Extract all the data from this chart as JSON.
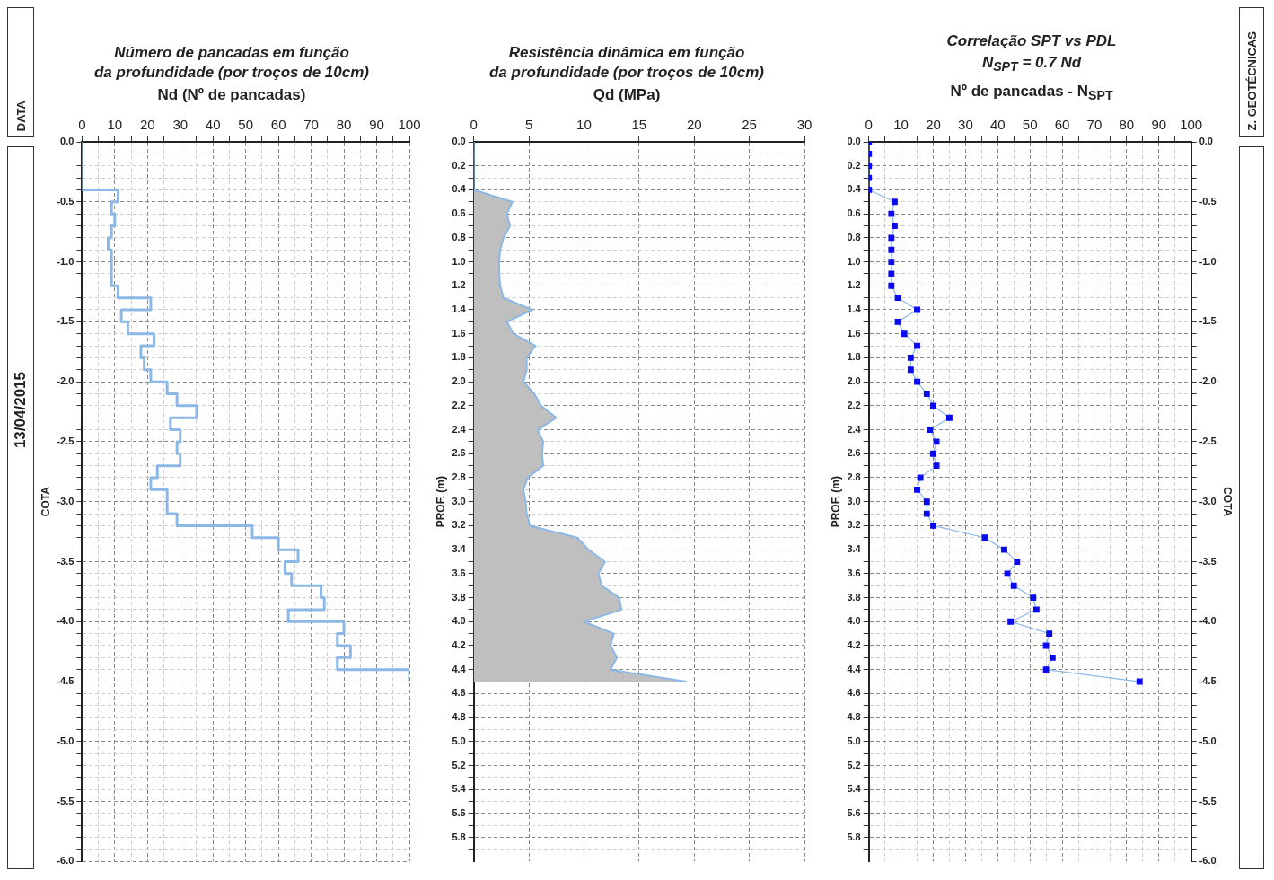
{
  "chart_data": [
    {
      "type": "step",
      "orientation": "horizontal",
      "title": "Número de pancadas em função\nda profundidade (por troços de 10cm)",
      "xlabel": "Nd   (Nº de pancadas)",
      "ylabel": "COTA",
      "annotations": [
        "DATA",
        "13/04/2015"
      ],
      "grid": true,
      "x": [
        0,
        -0.1,
        -0.2,
        -0.3,
        -0.4,
        -0.5,
        -0.6,
        -0.7,
        -0.8,
        -0.9,
        -1.0,
        -1.1,
        -1.2,
        -1.3,
        -1.4,
        -1.5,
        -1.6,
        -1.7,
        -1.8,
        -1.9,
        -2.0,
        -2.1,
        -2.2,
        -2.3,
        -2.4,
        -2.5,
        -2.6,
        -2.7,
        -2.8,
        -2.9,
        -3.0,
        -3.1,
        -3.2,
        -3.3,
        -3.4,
        -3.5,
        -3.6,
        -3.7,
        -3.8,
        -3.9,
        -4.0,
        -4.1,
        -4.2,
        -4.3,
        -4.4,
        -4.5
      ],
      "series": [
        {
          "color": "#8cb8e8",
          "values": [
            0,
            0,
            0,
            0,
            0,
            11,
            9,
            10,
            9,
            8,
            9,
            9,
            9,
            11,
            21,
            12,
            14,
            22,
            18,
            19,
            21,
            26,
            29,
            35,
            27,
            30,
            29,
            30,
            23,
            21,
            26,
            26,
            29,
            52,
            60,
            66,
            62,
            64,
            73,
            74,
            63,
            80,
            78,
            82,
            78,
            100
          ]
        }
      ],
      "xlim": [
        0,
        100
      ],
      "xticks": [
        0,
        {
          "value": 5,
          "label": null
        },
        10,
        {
          "value": 15,
          "label": null
        },
        20,
        {
          "value": 25,
          "label": null
        },
        30,
        {
          "value": 35,
          "label": null
        },
        40,
        {
          "value": 45,
          "label": null
        },
        50,
        {
          "value": 55,
          "label": null
        },
        60,
        {
          "value": 65,
          "label": null
        },
        70,
        {
          "value": 75,
          "label": null
        },
        80,
        {
          "value": 85,
          "label": null
        },
        90,
        {
          "value": 95,
          "label": null
        },
        100
      ],
      "ylim": [
        -6,
        0
      ],
      "yticks": [
        {
          "value": 0,
          "label": "0.0"
        },
        {
          "value": -0.1,
          "label": null
        },
        {
          "value": -0.2,
          "label": null
        },
        {
          "value": -0.3,
          "label": null
        },
        {
          "value": -0.4,
          "label": null
        },
        {
          "value": -0.5,
          "label": "-0.5"
        },
        {
          "value": -0.6,
          "label": null
        },
        {
          "value": -0.7,
          "label": null
        },
        {
          "value": -0.8,
          "label": null
        },
        {
          "value": -0.9,
          "label": null
        },
        {
          "value": -1.0,
          "label": "-1.0"
        },
        {
          "value": -1.1,
          "label": null
        },
        {
          "value": -1.2,
          "label": null
        },
        {
          "value": -1.3,
          "label": null
        },
        {
          "value": -1.4,
          "label": null
        },
        {
          "value": -1.5,
          "label": "-1.5"
        },
        {
          "value": -1.6,
          "label": null
        },
        {
          "value": -1.7,
          "label": null
        },
        {
          "value": -1.8,
          "label": null
        },
        {
          "value": -1.9,
          "label": null
        },
        {
          "value": -2.0,
          "label": "-2.0"
        },
        {
          "value": -2.1,
          "label": null
        },
        {
          "value": -2.2,
          "label": null
        },
        {
          "value": -2.3,
          "label": null
        },
        {
          "value": -2.4,
          "label": null
        },
        {
          "value": -2.5,
          "label": "-2.5"
        },
        {
          "value": -2.6,
          "label": null
        },
        {
          "value": -2.7,
          "label": null
        },
        {
          "value": -2.8,
          "label": null
        },
        {
          "value": -2.9,
          "label": null
        },
        {
          "value": -3.0,
          "label": "-3.0"
        },
        {
          "value": -3.1,
          "label": null
        },
        {
          "value": -3.2,
          "label": null
        },
        {
          "value": -3.3,
          "label": null
        },
        {
          "value": -3.4,
          "label": null
        },
        {
          "value": -3.5,
          "label": "-3.5"
        },
        {
          "value": -3.6,
          "label": null
        },
        {
          "value": -3.7,
          "label": null
        },
        {
          "value": -3.8,
          "label": null
        },
        {
          "value": -3.9,
          "label": null
        },
        {
          "value": -4.0,
          "label": "-4.0"
        },
        {
          "value": -4.1,
          "label": null
        },
        {
          "value": -4.2,
          "label": null
        },
        {
          "value": -4.3,
          "label": null
        },
        {
          "value": -4.4,
          "label": null
        },
        {
          "value": -4.5,
          "label": "-4.5"
        },
        {
          "value": -4.6,
          "label": null
        },
        {
          "value": -4.7,
          "label": null
        },
        {
          "value": -4.8,
          "label": null
        },
        {
          "value": -4.9,
          "label": null
        },
        {
          "value": -5.0,
          "label": "-5.0"
        },
        {
          "value": -5.1,
          "label": null
        },
        {
          "value": -5.2,
          "label": null
        },
        {
          "value": -5.3,
          "label": null
        },
        {
          "value": -5.4,
          "label": null
        },
        {
          "value": -5.5,
          "label": "-5.5"
        },
        {
          "value": -5.6,
          "label": null
        },
        {
          "value": -5.7,
          "label": null
        },
        {
          "value": -5.8,
          "label": null
        },
        {
          "value": -5.9,
          "label": null
        },
        {
          "value": -6.0,
          "label": "-6.0"
        }
      ]
    },
    {
      "type": "area",
      "orientation": "horizontal",
      "title": "Resistência dinâmica em função\nda profundidade (por troços de 10cm)",
      "xlabel": "Qd   (MPa)",
      "ylabel": "PROF. (m)",
      "grid": true,
      "x": [
        0,
        0.1,
        0.2,
        0.3,
        0.4,
        0.5,
        0.6,
        0.7,
        0.8,
        0.9,
        1.0,
        1.1,
        1.2,
        1.3,
        1.4,
        1.5,
        1.6,
        1.7,
        1.8,
        1.9,
        2.0,
        2.1,
        2.2,
        2.3,
        2.4,
        2.5,
        2.6,
        2.7,
        2.8,
        2.9,
        3.0,
        3.1,
        3.2,
        3.3,
        3.4,
        3.5,
        3.6,
        3.7,
        3.8,
        3.9,
        4.0,
        4.1,
        4.2,
        4.3,
        4.4,
        4.5
      ],
      "series": [
        {
          "color": "#bfbfbf",
          "values": [
            0,
            0,
            0,
            0,
            0,
            3.5,
            3.0,
            3.3,
            2.7,
            2.4,
            2.3,
            2.3,
            2.4,
            2.7,
            5.3,
            3.0,
            3.6,
            5.6,
            4.8,
            4.8,
            4.5,
            5.5,
            6.1,
            7.5,
            5.8,
            6.3,
            6.2,
            6.3,
            4.9,
            4.5,
            4.7,
            4.8,
            5.1,
            9.4,
            10.4,
            11.9,
            11.3,
            11.6,
            13.2,
            13.4,
            10.0,
            12.7,
            12.4,
            13.0,
            12.4,
            19.3
          ]
        }
      ],
      "xlim": [
        0,
        30
      ],
      "xticks": [
        0,
        5,
        10,
        15,
        20,
        25,
        30
      ],
      "ylim": [
        6,
        0
      ],
      "yticks": [
        {
          "value": 0,
          "label": "0.0"
        },
        {
          "value": 0.1,
          "label": null
        },
        {
          "value": 0.2,
          "label": "0.2"
        },
        {
          "value": 0.3,
          "label": null
        },
        {
          "value": 0.4,
          "label": "0.4"
        },
        {
          "value": 0.5,
          "label": null
        },
        {
          "value": 0.6,
          "label": "0.6"
        },
        {
          "value": 0.7,
          "label": null
        },
        {
          "value": 0.8,
          "label": "0.8"
        },
        {
          "value": 0.9,
          "label": null
        },
        {
          "value": 1.0,
          "label": "1.0"
        },
        {
          "value": 1.1,
          "label": null
        },
        {
          "value": 1.2,
          "label": "1.2"
        },
        {
          "value": 1.3,
          "label": null
        },
        {
          "value": 1.4,
          "label": "1.4"
        },
        {
          "value": 1.5,
          "label": null
        },
        {
          "value": 1.6,
          "label": "1.6"
        },
        {
          "value": 1.7,
          "label": null
        },
        {
          "value": 1.8,
          "label": "1.8"
        },
        {
          "value": 1.9,
          "label": null
        },
        {
          "value": 2.0,
          "label": "2.0"
        },
        {
          "value": 2.1,
          "label": null
        },
        {
          "value": 2.2,
          "label": "2.2"
        },
        {
          "value": 2.3,
          "label": null
        },
        {
          "value": 2.4,
          "label": "2.4"
        },
        {
          "value": 2.5,
          "label": null
        },
        {
          "value": 2.6,
          "label": "2.6"
        },
        {
          "value": 2.7,
          "label": null
        },
        {
          "value": 2.8,
          "label": "2.8"
        },
        {
          "value": 2.9,
          "label": null
        },
        {
          "value": 3.0,
          "label": "3.0"
        },
        {
          "value": 3.1,
          "label": null
        },
        {
          "value": 3.2,
          "label": "3.2"
        },
        {
          "value": 3.3,
          "label": null
        },
        {
          "value": 3.4,
          "label": "3.4"
        },
        {
          "value": 3.5,
          "label": null
        },
        {
          "value": 3.6,
          "label": "3.6"
        },
        {
          "value": 3.7,
          "label": null
        },
        {
          "value": 3.8,
          "label": "3.8"
        },
        {
          "value": 3.9,
          "label": null
        },
        {
          "value": 4.0,
          "label": "4.0"
        },
        {
          "value": 4.1,
          "label": null
        },
        {
          "value": 4.2,
          "label": "4.2"
        },
        {
          "value": 4.3,
          "label": null
        },
        {
          "value": 4.4,
          "label": "4.4"
        },
        {
          "value": 4.5,
          "label": null
        },
        {
          "value": 4.6,
          "label": "4.6"
        },
        {
          "value": 4.7,
          "label": null
        },
        {
          "value": 4.8,
          "label": "4.8"
        },
        {
          "value": 4.9,
          "label": null
        },
        {
          "value": 5.0,
          "label": "5.0"
        },
        {
          "value": 5.1,
          "label": null
        },
        {
          "value": 5.2,
          "label": "5.2"
        },
        {
          "value": 5.3,
          "label": null
        },
        {
          "value": 5.4,
          "label": "5.4"
        },
        {
          "value": 5.5,
          "label": null
        },
        {
          "value": 5.6,
          "label": "5.6"
        },
        {
          "value": 5.7,
          "label": null
        },
        {
          "value": 5.8,
          "label": "5.8"
        },
        {
          "value": 5.9,
          "label": null
        }
      ]
    },
    {
      "type": "line",
      "orientation": "horizontal",
      "title": "Correlação SPT vs PDL",
      "subtitle": "N$_{SPT}$ = 0.7 Nd",
      "xlabel": "Nº de pancadas - N$_{SPT}$",
      "ylabel": "PROF. (m)",
      "y2label": "COTA",
      "annotations": [
        "Z. GEOTÉCNICAS"
      ],
      "grid": true,
      "marker": "square",
      "x": [
        0,
        0.1,
        0.2,
        0.3,
        0.4,
        0.5,
        0.6,
        0.7,
        0.8,
        0.9,
        1.0,
        1.1,
        1.2,
        1.3,
        1.4,
        1.5,
        1.6,
        1.7,
        1.8,
        1.9,
        2.0,
        2.1,
        2.2,
        2.3,
        2.4,
        2.5,
        2.6,
        2.7,
        2.8,
        2.9,
        3.0,
        3.1,
        3.2,
        3.3,
        3.4,
        3.5,
        3.6,
        3.7,
        3.8,
        3.9,
        4.0,
        4.1,
        4.2,
        4.3,
        4.4,
        4.5
      ],
      "series": [
        {
          "color": "#0a0aee",
          "values": [
            0,
            0,
            0,
            0,
            0,
            8,
            7,
            8,
            7,
            7,
            7,
            7,
            7,
            9,
            15,
            9,
            11,
            15,
            13,
            13,
            15,
            18,
            20,
            25,
            19,
            21,
            20,
            21,
            16,
            15,
            18,
            18,
            20,
            36,
            42,
            46,
            43,
            45,
            51,
            52,
            44,
            56,
            55,
            57,
            55,
            84
          ]
        }
      ],
      "xlim": [
        0,
        100
      ],
      "xticks": [
        0,
        {
          "value": 5,
          "label": null
        },
        10,
        {
          "value": 15,
          "label": null
        },
        20,
        {
          "value": 25,
          "label": null
        },
        30,
        {
          "value": 35,
          "label": null
        },
        40,
        {
          "value": 45,
          "label": null
        },
        50,
        {
          "value": 55,
          "label": null
        },
        60,
        {
          "value": 65,
          "label": null
        },
        70,
        {
          "value": 75,
          "label": null
        },
        80,
        {
          "value": 85,
          "label": null
        },
        90,
        {
          "value": 95,
          "label": null
        },
        100
      ],
      "ylim": [
        6,
        0
      ],
      "yticks": [
        {
          "value": 0,
          "label": "0.0"
        },
        {
          "value": 0.1,
          "label": null
        },
        {
          "value": 0.2,
          "label": "0.2"
        },
        {
          "value": 0.3,
          "label": null
        },
        {
          "value": 0.4,
          "label": "0.4"
        },
        {
          "value": 0.5,
          "label": null
        },
        {
          "value": 0.6,
          "label": "0.6"
        },
        {
          "value": 0.7,
          "label": null
        },
        {
          "value": 0.8,
          "label": "0.8"
        },
        {
          "value": 0.9,
          "label": null
        },
        {
          "value": 1.0,
          "label": "1.0"
        },
        {
          "value": 1.1,
          "label": null
        },
        {
          "value": 1.2,
          "label": "1.2"
        },
        {
          "value": 1.3,
          "label": null
        },
        {
          "value": 1.4,
          "label": "1.4"
        },
        {
          "value": 1.5,
          "label": null
        },
        {
          "value": 1.6,
          "label": "1.6"
        },
        {
          "value": 1.7,
          "label": null
        },
        {
          "value": 1.8,
          "label": "1.8"
        },
        {
          "value": 1.9,
          "label": null
        },
        {
          "value": 2.0,
          "label": "2.0"
        },
        {
          "value": 2.1,
          "label": null
        },
        {
          "value": 2.2,
          "label": "2.2"
        },
        {
          "value": 2.3,
          "label": null
        },
        {
          "value": 2.4,
          "label": "2.4"
        },
        {
          "value": 2.5,
          "label": null
        },
        {
          "value": 2.6,
          "label": "2.6"
        },
        {
          "value": 2.7,
          "label": null
        },
        {
          "value": 2.8,
          "label": "2.8"
        },
        {
          "value": 2.9,
          "label": null
        },
        {
          "value": 3.0,
          "label": "3.0"
        },
        {
          "value": 3.1,
          "label": null
        },
        {
          "value": 3.2,
          "label": "3.2"
        },
        {
          "value": 3.3,
          "label": null
        },
        {
          "value": 3.4,
          "label": "3.4"
        },
        {
          "value": 3.5,
          "label": null
        },
        {
          "value": 3.6,
          "label": "3.6"
        },
        {
          "value": 3.7,
          "label": null
        },
        {
          "value": 3.8,
          "label": "3.8"
        },
        {
          "value": 3.9,
          "label": null
        },
        {
          "value": 4.0,
          "label": "4.0"
        },
        {
          "value": 4.1,
          "label": null
        },
        {
          "value": 4.2,
          "label": "4.2"
        },
        {
          "value": 4.3,
          "label": null
        },
        {
          "value": 4.4,
          "label": "4.4"
        },
        {
          "value": 4.5,
          "label": null
        },
        {
          "value": 4.6,
          "label": "4.6"
        },
        {
          "value": 4.7,
          "label": null
        },
        {
          "value": 4.8,
          "label": "4.8"
        },
        {
          "value": 4.9,
          "label": null
        },
        {
          "value": 5.0,
          "label": "5.0"
        },
        {
          "value": 5.1,
          "label": null
        },
        {
          "value": 5.2,
          "label": "5.2"
        },
        {
          "value": 5.3,
          "label": null
        },
        {
          "value": 5.4,
          "label": "5.4"
        },
        {
          "value": 5.5,
          "label": null
        },
        {
          "value": 5.6,
          "label": "5.6"
        },
        {
          "value": 5.7,
          "label": null
        },
        {
          "value": 5.8,
          "label": "5.8"
        },
        {
          "value": 5.9,
          "label": null
        }
      ],
      "y2lim": [
        -6,
        0
      ],
      "y2ticks": [
        {
          "value": 0,
          "label": "0.0"
        },
        {
          "value": -0.1,
          "label": null
        },
        {
          "value": -0.2,
          "label": null
        },
        {
          "value": -0.3,
          "label": null
        },
        {
          "value": -0.4,
          "label": null
        },
        {
          "value": -0.5,
          "label": "-0.5"
        },
        {
          "value": -0.6,
          "label": null
        },
        {
          "value": -0.7,
          "label": null
        },
        {
          "value": -0.8,
          "label": null
        },
        {
          "value": -0.9,
          "label": null
        },
        {
          "value": -1.0,
          "label": "-1.0"
        },
        {
          "value": -1.1,
          "label": null
        },
        {
          "value": -1.2,
          "label": null
        },
        {
          "value": -1.3,
          "label": null
        },
        {
          "value": -1.4,
          "label": null
        },
        {
          "value": -1.5,
          "label": "-1.5"
        },
        {
          "value": -1.6,
          "label": null
        },
        {
          "value": -1.7,
          "label": null
        },
        {
          "value": -1.8,
          "label": null
        },
        {
          "value": -1.9,
          "label": null
        },
        {
          "value": -2.0,
          "label": "-2.0"
        },
        {
          "value": -2.1,
          "label": null
        },
        {
          "value": -2.2,
          "label": null
        },
        {
          "value": -2.3,
          "label": null
        },
        {
          "value": -2.4,
          "label": null
        },
        {
          "value": -2.5,
          "label": "-2.5"
        },
        {
          "value": -2.6,
          "label": null
        },
        {
          "value": -2.7,
          "label": null
        },
        {
          "value": -2.8,
          "label": null
        },
        {
          "value": -2.9,
          "label": null
        },
        {
          "value": -3.0,
          "label": "-3.0"
        },
        {
          "value": -3.1,
          "label": null
        },
        {
          "value": -3.2,
          "label": null
        },
        {
          "value": -3.3,
          "label": null
        },
        {
          "value": -3.4,
          "label": null
        },
        {
          "value": -3.5,
          "label": "-3.5"
        },
        {
          "value": -3.6,
          "label": null
        },
        {
          "value": -3.7,
          "label": null
        },
        {
          "value": -3.8,
          "label": null
        },
        {
          "value": -3.9,
          "label": null
        },
        {
          "value": -4.0,
          "label": "-4.0"
        },
        {
          "value": -4.1,
          "label": null
        },
        {
          "value": -4.2,
          "label": null
        },
        {
          "value": -4.3,
          "label": null
        },
        {
          "value": -4.4,
          "label": null
        },
        {
          "value": -4.5,
          "label": "-4.5"
        },
        {
          "value": -4.6,
          "label": null
        },
        {
          "value": -4.7,
          "label": null
        },
        {
          "value": -4.8,
          "label": null
        },
        {
          "value": -4.9,
          "label": null
        },
        {
          "value": -5.0,
          "label": "-5.0"
        },
        {
          "value": -5.1,
          "label": null
        },
        {
          "value": -5.2,
          "label": null
        },
        {
          "value": -5.3,
          "label": null
        },
        {
          "value": -5.4,
          "label": null
        },
        {
          "value": -5.5,
          "label": "-5.5"
        },
        {
          "value": -5.6,
          "label": null
        },
        {
          "value": -5.7,
          "label": null
        },
        {
          "value": -5.8,
          "label": null
        },
        {
          "value": -5.9,
          "label": null
        },
        {
          "value": -6.0,
          "label": "-6.0"
        }
      ]
    }
  ]
}
